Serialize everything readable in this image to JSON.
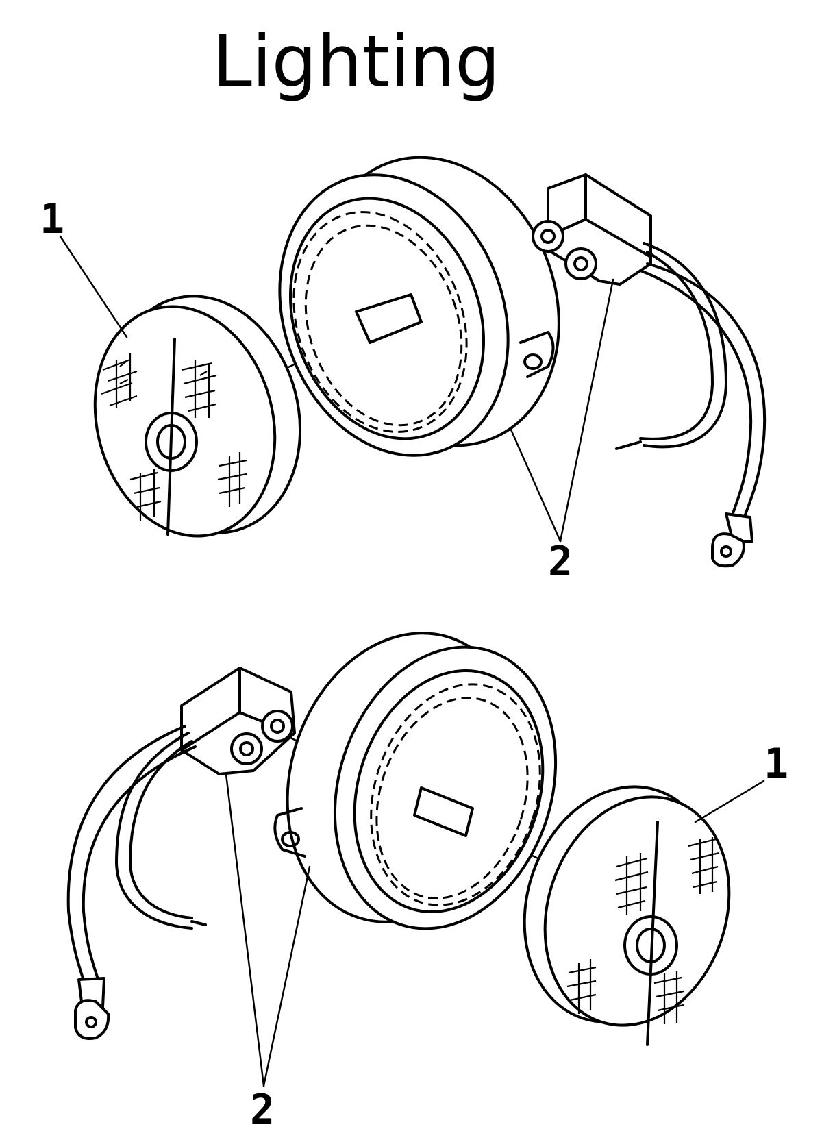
{
  "title": "Lighting",
  "callouts": {
    "top_lens": "1",
    "top_housing_and_connector": "2",
    "bottom_housing_and_connector": "2",
    "bottom_lens": "1"
  }
}
